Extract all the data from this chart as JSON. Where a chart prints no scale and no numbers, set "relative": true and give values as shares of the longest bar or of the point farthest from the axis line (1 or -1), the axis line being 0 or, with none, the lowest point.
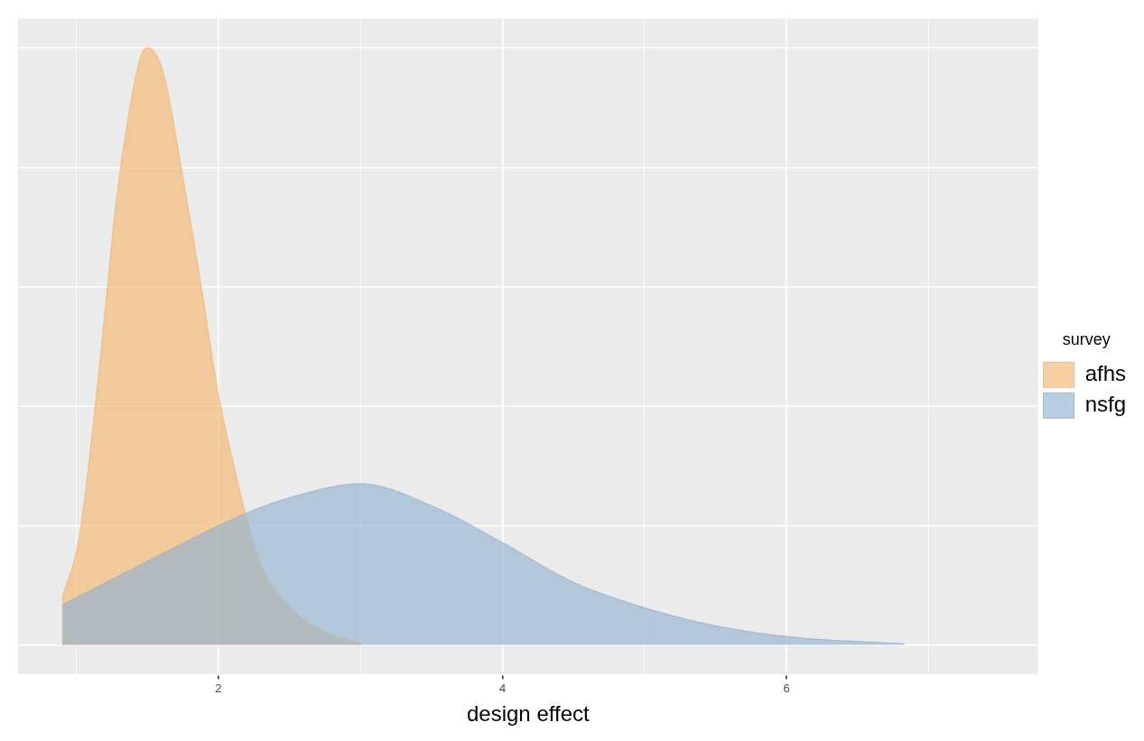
{
  "chart_data": {
    "type": "area",
    "xlabel": "design effect",
    "legend_title": "survey",
    "relative": true,
    "xlim": [
      0.59,
      7.77
    ],
    "xticks": [
      {
        "value": 1,
        "label": null
      },
      2,
      {
        "value": 3,
        "label": null
      },
      4,
      {
        "value": 5,
        "label": null
      },
      6,
      {
        "value": 7,
        "label": null
      }
    ],
    "grid": true,
    "legend": "right",
    "series": [
      {
        "name": "afhs",
        "color": "#f4b76f",
        "x": [
          0.9,
          1.02,
          1.11,
          1.19,
          1.28,
          1.37,
          1.46,
          1.51,
          1.61,
          1.76,
          1.88,
          2.0,
          2.12,
          2.19,
          2.29,
          2.5,
          2.77,
          3.01
        ],
        "values": [
          0.078,
          0.18,
          0.35,
          0.53,
          0.74,
          0.89,
          0.99,
          1.0,
          0.96,
          0.77,
          0.6,
          0.42,
          0.29,
          0.22,
          0.14,
          0.063,
          0.02,
          0.002
        ]
      },
      {
        "name": "nsfg",
        "color": "#94b3d1",
        "x": [
          0.9,
          1.5,
          2.19,
          2.55,
          3.0,
          3.53,
          4.01,
          4.5,
          4.99,
          5.48,
          6.04,
          6.83
        ],
        "values": [
          0.067,
          0.14,
          0.22,
          0.25,
          0.27,
          0.23,
          0.17,
          0.105,
          0.063,
          0.033,
          0.013,
          0.002
        ]
      }
    ]
  }
}
